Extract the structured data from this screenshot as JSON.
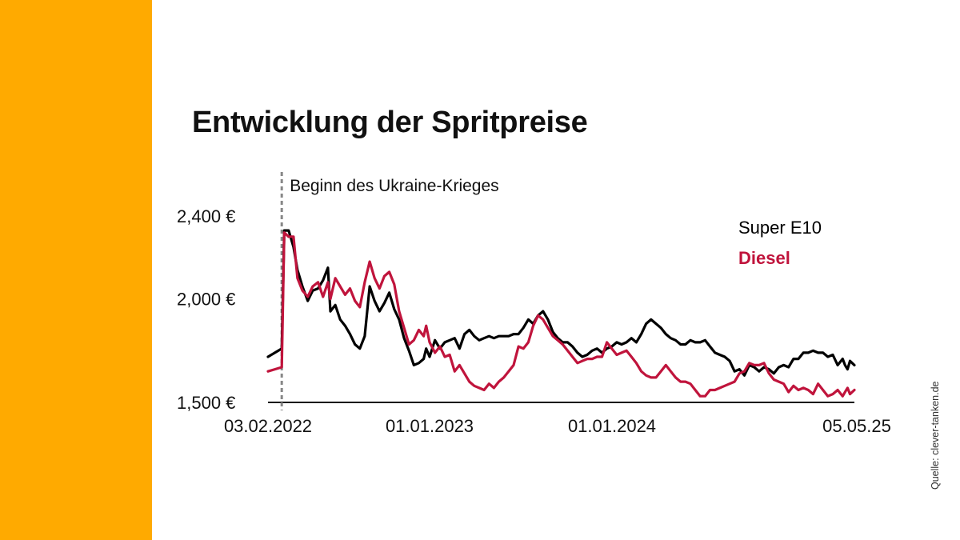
{
  "title": "Entwicklung der Spritpreise",
  "source": "Quelle: clever-tanken.de",
  "chart_data": {
    "type": "line",
    "title": "Entwicklung der Spritpreise",
    "x_start": "2022-01-27",
    "x_end": "2025-05-05",
    "ylim": [
      1500,
      2400
    ],
    "yticks": [
      {
        "value": 2400,
        "label": "2,400 €"
      },
      {
        "value": 2000,
        "label": "2,000 €"
      },
      {
        "value": 1500,
        "label": "1,500 €"
      }
    ],
    "xticks": [
      {
        "date": "2022-02-03",
        "label": "03.02.2022"
      },
      {
        "date": "2023-01-01",
        "label": "01.01.2023"
      },
      {
        "date": "2024-01-01",
        "label": "01.01.2024"
      },
      {
        "date": "2025-05-05",
        "label": "05.05.25"
      }
    ],
    "annotation": {
      "date": "2022-02-24",
      "label": "Beginn des Ukraine-Krieges"
    },
    "legend_position": "top-right",
    "grid": false,
    "series": [
      {
        "name": "Super E10",
        "color": "#000000",
        "points": [
          [
            "2022-01-27",
            1720
          ],
          [
            "2022-02-10",
            1740
          ],
          [
            "2022-02-24",
            1760
          ],
          [
            "2022-03-01",
            2330
          ],
          [
            "2022-03-10",
            2330
          ],
          [
            "2022-03-20",
            2250
          ],
          [
            "2022-03-28",
            2140
          ],
          [
            "2022-04-07",
            2060
          ],
          [
            "2022-04-18",
            1990
          ],
          [
            "2022-04-28",
            2040
          ],
          [
            "2022-05-09",
            2050
          ],
          [
            "2022-05-19",
            2090
          ],
          [
            "2022-05-29",
            2150
          ],
          [
            "2022-06-03",
            1940
          ],
          [
            "2022-06-13",
            1970
          ],
          [
            "2022-06-23",
            1900
          ],
          [
            "2022-07-03",
            1870
          ],
          [
            "2022-07-13",
            1830
          ],
          [
            "2022-07-23",
            1780
          ],
          [
            "2022-08-02",
            1760
          ],
          [
            "2022-08-12",
            1820
          ],
          [
            "2022-08-22",
            2060
          ],
          [
            "2022-09-01",
            1990
          ],
          [
            "2022-09-11",
            1940
          ],
          [
            "2022-09-21",
            1980
          ],
          [
            "2022-10-01",
            2030
          ],
          [
            "2022-10-11",
            1950
          ],
          [
            "2022-10-21",
            1900
          ],
          [
            "2022-10-31",
            1810
          ],
          [
            "2022-11-10",
            1750
          ],
          [
            "2022-11-20",
            1680
          ],
          [
            "2022-11-30",
            1690
          ],
          [
            "2022-12-10",
            1710
          ],
          [
            "2022-12-15",
            1760
          ],
          [
            "2022-12-22",
            1720
          ],
          [
            "2023-01-02",
            1800
          ],
          [
            "2023-01-12",
            1760
          ],
          [
            "2023-01-22",
            1790
          ],
          [
            "2023-02-01",
            1800
          ],
          [
            "2023-02-11",
            1810
          ],
          [
            "2023-02-21",
            1760
          ],
          [
            "2023-03-03",
            1830
          ],
          [
            "2023-03-13",
            1850
          ],
          [
            "2023-03-23",
            1820
          ],
          [
            "2023-04-02",
            1800
          ],
          [
            "2023-04-12",
            1810
          ],
          [
            "2023-04-22",
            1820
          ],
          [
            "2023-05-02",
            1810
          ],
          [
            "2023-05-12",
            1820
          ],
          [
            "2023-05-22",
            1820
          ],
          [
            "2023-06-01",
            1820
          ],
          [
            "2023-06-11",
            1830
          ],
          [
            "2023-06-21",
            1830
          ],
          [
            "2023-07-01",
            1860
          ],
          [
            "2023-07-11",
            1900
          ],
          [
            "2023-07-21",
            1880
          ],
          [
            "2023-07-31",
            1920
          ],
          [
            "2023-08-10",
            1940
          ],
          [
            "2023-08-20",
            1900
          ],
          [
            "2023-08-30",
            1840
          ],
          [
            "2023-09-09",
            1810
          ],
          [
            "2023-09-19",
            1790
          ],
          [
            "2023-09-29",
            1790
          ],
          [
            "2023-10-09",
            1770
          ],
          [
            "2023-10-19",
            1740
          ],
          [
            "2023-10-29",
            1720
          ],
          [
            "2023-11-08",
            1730
          ],
          [
            "2023-11-18",
            1750
          ],
          [
            "2023-11-28",
            1760
          ],
          [
            "2023-12-08",
            1740
          ],
          [
            "2023-12-18",
            1760
          ],
          [
            "2023-12-28",
            1770
          ],
          [
            "2024-01-07",
            1790
          ],
          [
            "2024-01-17",
            1780
          ],
          [
            "2024-01-27",
            1790
          ],
          [
            "2024-02-06",
            1810
          ],
          [
            "2024-02-16",
            1790
          ],
          [
            "2024-02-26",
            1830
          ],
          [
            "2024-03-07",
            1880
          ],
          [
            "2024-03-17",
            1900
          ],
          [
            "2024-03-27",
            1880
          ],
          [
            "2024-04-06",
            1860
          ],
          [
            "2024-04-16",
            1830
          ],
          [
            "2024-04-26",
            1810
          ],
          [
            "2024-05-06",
            1800
          ],
          [
            "2024-05-16",
            1780
          ],
          [
            "2024-05-26",
            1780
          ],
          [
            "2024-06-05",
            1800
          ],
          [
            "2024-06-15",
            1790
          ],
          [
            "2024-06-25",
            1790
          ],
          [
            "2024-07-05",
            1800
          ],
          [
            "2024-07-15",
            1770
          ],
          [
            "2024-07-25",
            1740
          ],
          [
            "2024-08-04",
            1730
          ],
          [
            "2024-08-14",
            1720
          ],
          [
            "2024-08-24",
            1700
          ],
          [
            "2024-09-03",
            1650
          ],
          [
            "2024-09-13",
            1660
          ],
          [
            "2024-09-23",
            1630
          ],
          [
            "2024-10-03",
            1680
          ],
          [
            "2024-10-13",
            1670
          ],
          [
            "2024-10-23",
            1650
          ],
          [
            "2024-11-02",
            1670
          ],
          [
            "2024-11-12",
            1660
          ],
          [
            "2024-11-22",
            1640
          ],
          [
            "2024-12-02",
            1670
          ],
          [
            "2024-12-12",
            1680
          ],
          [
            "2024-12-22",
            1670
          ],
          [
            "2025-01-01",
            1710
          ],
          [
            "2025-01-11",
            1710
          ],
          [
            "2025-01-21",
            1740
          ],
          [
            "2025-01-31",
            1740
          ],
          [
            "2025-02-10",
            1750
          ],
          [
            "2025-02-20",
            1740
          ],
          [
            "2025-03-02",
            1740
          ],
          [
            "2025-03-12",
            1720
          ],
          [
            "2025-03-22",
            1730
          ],
          [
            "2025-04-01",
            1680
          ],
          [
            "2025-04-11",
            1710
          ],
          [
            "2025-04-16",
            1680
          ],
          [
            "2025-04-21",
            1660
          ],
          [
            "2025-04-26",
            1700
          ],
          [
            "2025-05-05",
            1680
          ]
        ]
      },
      {
        "name": "Diesel",
        "color": "#c0143c",
        "points": [
          [
            "2022-01-27",
            1650
          ],
          [
            "2022-02-10",
            1660
          ],
          [
            "2022-02-24",
            1670
          ],
          [
            "2022-03-01",
            2320
          ],
          [
            "2022-03-10",
            2300
          ],
          [
            "2022-03-20",
            2300
          ],
          [
            "2022-03-28",
            2100
          ],
          [
            "2022-04-07",
            2040
          ],
          [
            "2022-04-18",
            2010
          ],
          [
            "2022-04-28",
            2060
          ],
          [
            "2022-05-09",
            2080
          ],
          [
            "2022-05-19",
            2010
          ],
          [
            "2022-05-29",
            2080
          ],
          [
            "2022-06-03",
            2000
          ],
          [
            "2022-06-13",
            2100
          ],
          [
            "2022-06-23",
            2060
          ],
          [
            "2022-07-03",
            2020
          ],
          [
            "2022-07-13",
            2050
          ],
          [
            "2022-07-23",
            1990
          ],
          [
            "2022-08-02",
            1960
          ],
          [
            "2022-08-12",
            2080
          ],
          [
            "2022-08-22",
            2180
          ],
          [
            "2022-09-01",
            2100
          ],
          [
            "2022-09-11",
            2050
          ],
          [
            "2022-09-21",
            2110
          ],
          [
            "2022-10-01",
            2130
          ],
          [
            "2022-10-11",
            2070
          ],
          [
            "2022-10-21",
            1940
          ],
          [
            "2022-10-31",
            1860
          ],
          [
            "2022-11-10",
            1780
          ],
          [
            "2022-11-20",
            1800
          ],
          [
            "2022-11-30",
            1850
          ],
          [
            "2022-12-10",
            1820
          ],
          [
            "2022-12-15",
            1870
          ],
          [
            "2022-12-22",
            1790
          ],
          [
            "2023-01-02",
            1740
          ],
          [
            "2023-01-12",
            1770
          ],
          [
            "2023-01-22",
            1720
          ],
          [
            "2023-02-01",
            1730
          ],
          [
            "2023-02-11",
            1650
          ],
          [
            "2023-02-21",
            1680
          ],
          [
            "2023-03-03",
            1640
          ],
          [
            "2023-03-13",
            1600
          ],
          [
            "2023-03-23",
            1580
          ],
          [
            "2023-04-02",
            1570
          ],
          [
            "2023-04-12",
            1560
          ],
          [
            "2023-04-22",
            1590
          ],
          [
            "2023-05-02",
            1570
          ],
          [
            "2023-05-12",
            1600
          ],
          [
            "2023-05-22",
            1620
          ],
          [
            "2023-06-01",
            1650
          ],
          [
            "2023-06-11",
            1680
          ],
          [
            "2023-06-21",
            1770
          ],
          [
            "2023-07-01",
            1760
          ],
          [
            "2023-07-11",
            1790
          ],
          [
            "2023-07-21",
            1870
          ],
          [
            "2023-07-31",
            1920
          ],
          [
            "2023-08-10",
            1900
          ],
          [
            "2023-08-20",
            1860
          ],
          [
            "2023-08-30",
            1820
          ],
          [
            "2023-09-09",
            1800
          ],
          [
            "2023-09-19",
            1780
          ],
          [
            "2023-09-29",
            1750
          ],
          [
            "2023-10-09",
            1720
          ],
          [
            "2023-10-19",
            1690
          ],
          [
            "2023-10-29",
            1700
          ],
          [
            "2023-11-08",
            1710
          ],
          [
            "2023-11-18",
            1710
          ],
          [
            "2023-11-28",
            1720
          ],
          [
            "2023-12-08",
            1720
          ],
          [
            "2023-12-18",
            1790
          ],
          [
            "2023-12-28",
            1760
          ],
          [
            "2024-01-07",
            1730
          ],
          [
            "2024-01-17",
            1740
          ],
          [
            "2024-01-27",
            1750
          ],
          [
            "2024-02-06",
            1720
          ],
          [
            "2024-02-16",
            1690
          ],
          [
            "2024-02-26",
            1650
          ],
          [
            "2024-03-07",
            1630
          ],
          [
            "2024-03-17",
            1620
          ],
          [
            "2024-03-27",
            1620
          ],
          [
            "2024-04-06",
            1650
          ],
          [
            "2024-04-16",
            1680
          ],
          [
            "2024-04-26",
            1650
          ],
          [
            "2024-05-06",
            1620
          ],
          [
            "2024-05-16",
            1600
          ],
          [
            "2024-05-26",
            1600
          ],
          [
            "2024-06-05",
            1590
          ],
          [
            "2024-06-15",
            1560
          ],
          [
            "2024-06-25",
            1530
          ],
          [
            "2024-07-05",
            1530
          ],
          [
            "2024-07-15",
            1560
          ],
          [
            "2024-07-25",
            1560
          ],
          [
            "2024-08-04",
            1570
          ],
          [
            "2024-08-14",
            1580
          ],
          [
            "2024-08-24",
            1590
          ],
          [
            "2024-09-03",
            1600
          ],
          [
            "2024-09-13",
            1640
          ],
          [
            "2024-09-23",
            1650
          ],
          [
            "2024-10-03",
            1690
          ],
          [
            "2024-10-13",
            1680
          ],
          [
            "2024-10-23",
            1680
          ],
          [
            "2024-11-02",
            1690
          ],
          [
            "2024-11-12",
            1640
          ],
          [
            "2024-11-22",
            1610
          ],
          [
            "2024-12-02",
            1600
          ],
          [
            "2024-12-12",
            1590
          ],
          [
            "2024-12-22",
            1550
          ],
          [
            "2025-01-01",
            1580
          ],
          [
            "2025-01-11",
            1560
          ],
          [
            "2025-01-21",
            1570
          ],
          [
            "2025-01-31",
            1560
          ],
          [
            "2025-02-10",
            1540
          ],
          [
            "2025-02-20",
            1590
          ],
          [
            "2025-03-02",
            1560
          ],
          [
            "2025-03-12",
            1530
          ],
          [
            "2025-03-22",
            1540
          ],
          [
            "2025-04-01",
            1560
          ],
          [
            "2025-04-11",
            1530
          ],
          [
            "2025-04-16",
            1550
          ],
          [
            "2025-04-21",
            1570
          ],
          [
            "2025-04-26",
            1540
          ],
          [
            "2025-05-05",
            1560
          ]
        ]
      }
    ]
  }
}
